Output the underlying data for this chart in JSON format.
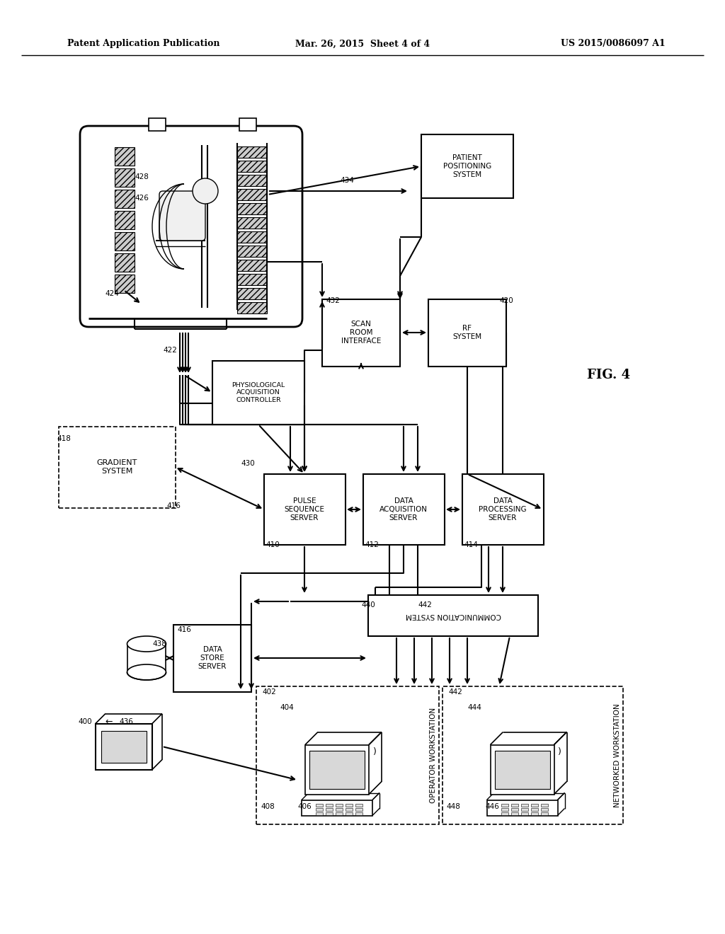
{
  "title_left": "Patent Application Publication",
  "title_center": "Mar. 26, 2015  Sheet 4 of 4",
  "title_right": "US 2015/0086097 A1",
  "fig_label": "FIG. 4",
  "background_color": "#ffffff"
}
